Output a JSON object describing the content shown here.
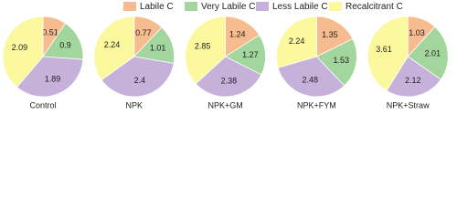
{
  "legend": {
    "labels": [
      "Labile C",
      "Very Labile C",
      "Less Labile C",
      "Recalcitrant C"
    ],
    "colors": [
      "#f6bb8e",
      "#a3d69c",
      "#c6b1db",
      "#fbf89e"
    ]
  },
  "chart_data": [
    {
      "type": "pie",
      "title": "Control",
      "values": [
        0.51,
        0.9,
        1.89,
        2.09
      ]
    },
    {
      "type": "pie",
      "title": "NPK",
      "values": [
        0.77,
        1.01,
        2.4,
        2.24
      ]
    },
    {
      "type": "pie",
      "title": "NPK+GM",
      "values": [
        1.24,
        1.27,
        2.38,
        2.85
      ]
    },
    {
      "type": "pie",
      "title": "NPK+FYM",
      "values": [
        1.35,
        1.53,
        2.48,
        2.24
      ]
    },
    {
      "type": "pie",
      "title": "NPK+Straw",
      "values": [
        1.03,
        2.01,
        2.12,
        3.61
      ]
    }
  ]
}
